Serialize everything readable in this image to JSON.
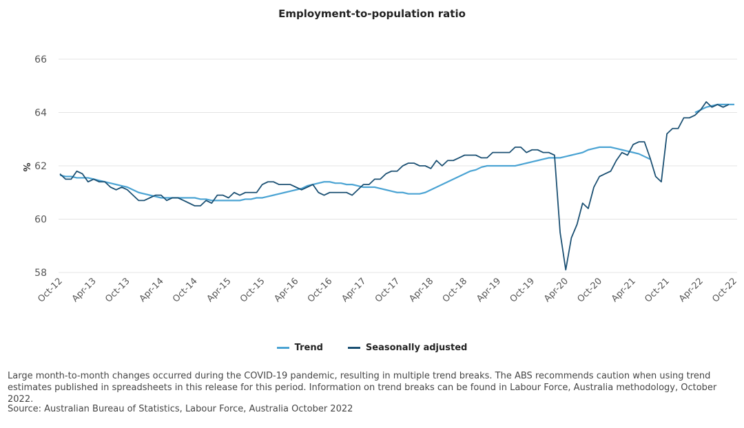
{
  "chart_data": {
    "type": "line",
    "title": "Employment-to-population ratio",
    "ylabel": "%",
    "ylim": [
      58,
      66
    ],
    "yticks": [
      58,
      60,
      62,
      64,
      66
    ],
    "grid": true,
    "legend_position": "bottom",
    "start": "Oct-12",
    "end": "Oct-22",
    "xtick_labels": [
      "Oct-12",
      "Apr-13",
      "Oct-13",
      "Apr-14",
      "Oct-14",
      "Apr-15",
      "Oct-15",
      "Apr-16",
      "Oct-16",
      "Apr-17",
      "Oct-17",
      "Apr-18",
      "Oct-18",
      "Apr-19",
      "Oct-19",
      "Apr-20",
      "Oct-20",
      "Apr-21",
      "Oct-21",
      "Apr-22",
      "Oct-22"
    ],
    "series": [
      {
        "name": "Trend",
        "color": "#4aa3d3",
        "segments": [
          {
            "start": "Oct-12",
            "values": [
              61.65,
              61.6,
              61.6,
              61.55,
              61.55,
              61.55,
              61.5,
              61.45,
              61.4,
              61.35,
              61.3,
              61.25,
              61.2,
              61.1,
              61.0,
              60.95,
              60.9,
              60.85,
              60.8,
              60.8,
              60.8,
              60.8,
              60.8,
              60.8,
              60.8,
              60.75,
              60.75,
              60.7,
              60.7,
              60.7,
              60.7,
              60.7,
              60.7,
              60.75,
              60.75,
              60.8,
              60.8,
              60.85,
              60.9,
              60.95,
              61.0,
              61.05,
              61.1,
              61.15,
              61.25,
              61.3,
              61.35,
              61.4,
              61.4,
              61.35,
              61.35,
              61.3,
              61.3,
              61.25,
              61.2,
              61.2,
              61.2,
              61.15,
              61.1,
              61.05,
              61.0,
              61.0,
              60.95,
              60.95,
              60.95,
              61.0,
              61.1,
              61.2,
              61.3,
              61.4,
              61.5,
              61.6,
              61.7,
              61.8,
              61.85,
              61.95,
              62.0,
              62.0,
              62.0,
              62.0,
              62.0,
              62.0,
              62.05,
              62.1,
              62.15,
              62.2,
              62.25,
              62.3,
              62.3,
              62.3,
              62.35,
              62.4,
              62.45,
              62.5,
              62.6,
              62.65,
              62.7,
              62.7,
              62.7,
              62.65,
              62.6,
              62.55,
              62.5,
              62.45,
              62.35,
              62.25
            ]
          },
          {
            "start": "Mar-22",
            "values": [
              64.0,
              64.1,
              64.2,
              64.25,
              64.3,
              64.3,
              64.3,
              64.3
            ]
          }
        ]
      },
      {
        "name": "Seasonally adjusted",
        "color": "#1a4f72",
        "segments": [
          {
            "start": "Oct-12",
            "values": [
              61.7,
              61.5,
              61.5,
              61.8,
              61.7,
              61.4,
              61.5,
              61.4,
              61.4,
              61.2,
              61.1,
              61.2,
              61.1,
              60.9,
              60.7,
              60.7,
              60.8,
              60.9,
              60.9,
              60.7,
              60.8,
              60.8,
              60.7,
              60.6,
              60.5,
              60.5,
              60.7,
              60.6,
              60.9,
              60.9,
              60.8,
              61.0,
              60.9,
              61.0,
              61.0,
              61.0,
              61.3,
              61.4,
              61.4,
              61.3,
              61.3,
              61.3,
              61.2,
              61.1,
              61.2,
              61.3,
              61.0,
              60.9,
              61.0,
              61.0,
              61.0,
              61.0,
              60.9,
              61.1,
              61.3,
              61.3,
              61.5,
              61.5,
              61.7,
              61.8,
              61.8,
              62.0,
              62.1,
              62.1,
              62.0,
              62.0,
              61.9,
              62.2,
              62.0,
              62.2,
              62.2,
              62.3,
              62.4,
              62.4,
              62.4,
              62.3,
              62.3,
              62.5,
              62.5,
              62.5,
              62.5,
              62.7,
              62.7,
              62.5,
              62.6,
              62.6,
              62.5,
              62.5,
              62.4,
              59.5,
              58.1,
              59.3,
              59.8,
              60.6,
              60.4,
              61.2,
              61.6,
              61.7,
              61.8,
              62.2,
              62.5,
              62.4,
              62.8,
              62.9,
              62.9,
              62.3,
              61.6,
              61.4,
              63.2,
              63.4,
              63.4,
              63.8,
              63.8,
              63.9,
              64.1,
              64.4,
              64.2,
              64.3,
              64.2,
              64.3
            ]
          }
        ]
      }
    ]
  },
  "legend": {
    "items": [
      {
        "label": "Trend",
        "color": "#4aa3d3"
      },
      {
        "label": "Seasonally adjusted",
        "color": "#1a4f72"
      }
    ]
  },
  "footnote": "Large month-to-month changes occurred during the COVID-19 pandemic, resulting in multiple trend breaks. The ABS recommends caution when using trend estimates published in spreadsheets in this release for this period. Information on trend breaks can be found in Labour Force, Australia methodology, October 2022.",
  "source": "Source: Australian Bureau of Statistics, Labour Force, Australia October 2022"
}
